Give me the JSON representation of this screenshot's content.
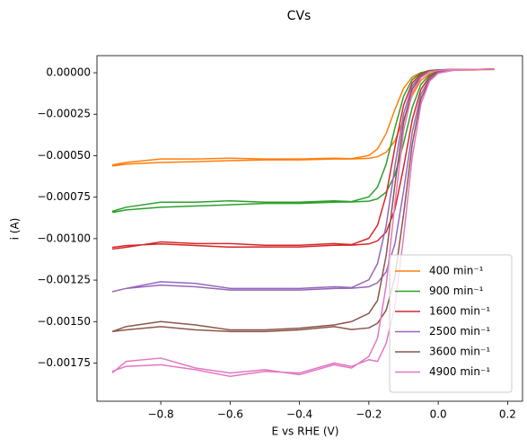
{
  "chart_data": {
    "type": "line",
    "title": "CVs",
    "x_label": "E vs RHE (V)",
    "y_label": "i (A)",
    "x": [
      -0.94,
      -0.9,
      -0.8,
      -0.7,
      -0.6,
      -0.5,
      -0.4,
      -0.3,
      -0.25,
      -0.2,
      -0.175,
      -0.15,
      -0.125,
      -0.1,
      -0.075,
      -0.05,
      -0.025,
      0,
      0.05,
      0.1,
      0.16,
      0.1,
      0.05,
      0,
      -0.025,
      -0.05,
      -0.075,
      -0.1,
      -0.125,
      -0.15,
      -0.175,
      -0.2,
      -0.25,
      -0.3,
      -0.4,
      -0.5,
      -0.6,
      -0.7,
      -0.8,
      -0.9,
      -0.94
    ],
    "series": [
      {
        "name": "400 min⁻¹",
        "color": "#ff7f0e",
        "values": [
          -0.000556,
          -0.000541,
          -0.00052,
          -0.00052,
          -0.000515,
          -0.00052,
          -0.00052,
          -0.000515,
          -0.000518,
          -0.000499,
          -0.000459,
          -0.000366,
          -0.000222,
          -9.4e-05,
          -2.6e-05,
          1e-06,
          1e-05,
          1.3e-05,
          1.5e-05,
          1.7e-05,
          2e-05,
          1.7e-05,
          1.5e-05,
          8e-06,
          -6e-06,
          -4.6e-05,
          -0.000138,
          -0.000283,
          -0.000411,
          -0.000479,
          -0.000506,
          -0.000516,
          -0.00052,
          -0.00052,
          -0.000525,
          -0.000525,
          -0.00053,
          -0.000536,
          -0.000541,
          -0.000551,
          -0.000562
        ]
      },
      {
        "name": "900 min⁻¹",
        "color": "#2ca02c",
        "values": [
          -0.000835,
          -0.000811,
          -0.00078,
          -0.00078,
          -0.000772,
          -0.00078,
          -0.00078,
          -0.000772,
          -0.000777,
          -0.000748,
          -0.000689,
          -0.00055,
          -0.000334,
          -0.000143,
          -4.1e-05,
          -1e-06,
          1.4e-05,
          1.8e-05,
          2e-05,
          2e-05,
          2.2e-05,
          2e-05,
          1.9e-05,
          1e-05,
          -1.2e-05,
          -7.1e-05,
          -0.00021,
          -0.000426,
          -0.000617,
          -0.000719,
          -0.00076,
          -0.000774,
          -0.000779,
          -0.00078,
          -0.000788,
          -0.000788,
          -0.000796,
          -0.000803,
          -0.000811,
          -0.000827,
          -0.000842
        ]
      },
      {
        "name": "1600 min⁻¹",
        "color": "#d62728",
        "values": [
          -0.001063,
          -0.001052,
          -0.00102,
          -0.00103,
          -0.00103,
          -0.00104,
          -0.00104,
          -0.00103,
          -0.001036,
          -0.000998,
          -0.000919,
          -0.000736,
          -0.00045,
          -0.000196,
          -6.1e-05,
          -8e-06,
          1.2e-05,
          1.7e-05,
          2e-05,
          2e-05,
          2.2e-05,
          2e-05,
          1.9e-05,
          6e-06,
          -2.3e-05,
          -0.000101,
          -0.000284,
          -0.000571,
          -0.000824,
          -0.00096,
          -0.001013,
          -0.001032,
          -0.001039,
          -0.00104,
          -0.00105,
          -0.00105,
          -0.001051,
          -0.001041,
          -0.001032,
          -0.001042,
          -0.001053
        ]
      },
      {
        "name": "2500 min⁻¹",
        "color": "#9467bd",
        "values": [
          -0.00132,
          -0.0013,
          -0.00126,
          -0.00127,
          -0.0013,
          -0.0013,
          -0.0013,
          -0.00129,
          -0.001295,
          -0.001248,
          -0.00115,
          -0.000921,
          -0.000565,
          -0.000249,
          -8e-05,
          -1.5e-05,
          9e-06,
          1.6e-05,
          2e-05,
          2e-05,
          2.2e-05,
          2e-05,
          1.9e-05,
          3e-06,
          -3.3e-05,
          -0.000131,
          -0.000359,
          -0.000715,
          -0.001031,
          -0.0012,
          -0.001266,
          -0.00129,
          -0.001299,
          -0.0013,
          -0.00131,
          -0.00131,
          -0.00131,
          -0.00129,
          -0.00128,
          -0.0013,
          -0.00132
        ]
      },
      {
        "name": "3600 min⁻¹",
        "color": "#8c564b",
        "values": [
          -0.00156,
          -0.00153,
          -0.0015,
          -0.00152,
          -0.00155,
          -0.00155,
          -0.00154,
          -0.00152,
          -0.0015,
          -0.00145,
          -0.001373,
          -0.0011,
          -0.000676,
          -0.0003,
          -9.9e-05,
          -2.1e-05,
          7e-06,
          1.5e-05,
          2e-05,
          2e-05,
          2.2e-05,
          2e-05,
          1.8e-05,
          -1e-06,
          -4.3e-05,
          -0.000159,
          -0.000431,
          -0.000855,
          -0.00123,
          -0.001431,
          -0.00151,
          -0.001538,
          -0.001548,
          -0.00153,
          -0.00155,
          -0.00156,
          -0.00156,
          -0.00155,
          -0.00153,
          -0.00155,
          -0.00156
        ]
      },
      {
        "name": "4900 min⁻¹",
        "color": "#e377c2",
        "values": [
          -0.00181,
          -0.00174,
          -0.00172,
          -0.00178,
          -0.00181,
          -0.00179,
          -0.00182,
          -0.00176,
          -0.00178,
          -0.00171,
          -0.0016,
          -0.00128,
          -0.00079,
          -0.00035,
          -0.00012,
          -3e-05,
          5e-06,
          1.4e-05,
          2e-05,
          2e-05,
          2.2e-05,
          2e-05,
          1.8e-05,
          -3e-06,
          -5e-05,
          -0.00019,
          -0.00051,
          -0.00099,
          -0.00141,
          -0.00163,
          -0.00174,
          -0.00173,
          -0.00177,
          -0.00175,
          -0.00181,
          -0.0018,
          -0.00183,
          -0.00179,
          -0.00176,
          -0.00177,
          -0.0018
        ]
      }
    ],
    "xlim": [
      -0.984,
      0.243
    ],
    "ylim": [
      -0.00198,
      0.000103
    ],
    "xticks": [
      {
        "value": -0.8,
        "label": "−0.8"
      },
      {
        "value": -0.6,
        "label": "−0.6"
      },
      {
        "value": -0.4,
        "label": "−0.4"
      },
      {
        "value": -0.2,
        "label": "−0.2"
      },
      {
        "value": 0,
        "label": "0.0"
      },
      0.2
    ],
    "yticks": [
      {
        "value": 0,
        "label": "0.00000"
      },
      {
        "value": -0.00025,
        "label": "−0.00025"
      },
      {
        "value": -0.0005,
        "label": "−0.00050"
      },
      {
        "value": -0.00075,
        "label": "−0.00075"
      },
      {
        "value": -0.001,
        "label": "−0.00100"
      },
      {
        "value": -0.00125,
        "label": "−0.00125"
      },
      {
        "value": -0.0015,
        "label": "−0.00150"
      },
      {
        "value": -0.00175,
        "label": "−0.00175"
      }
    ],
    "legend": "lower right",
    "grid": false
  }
}
